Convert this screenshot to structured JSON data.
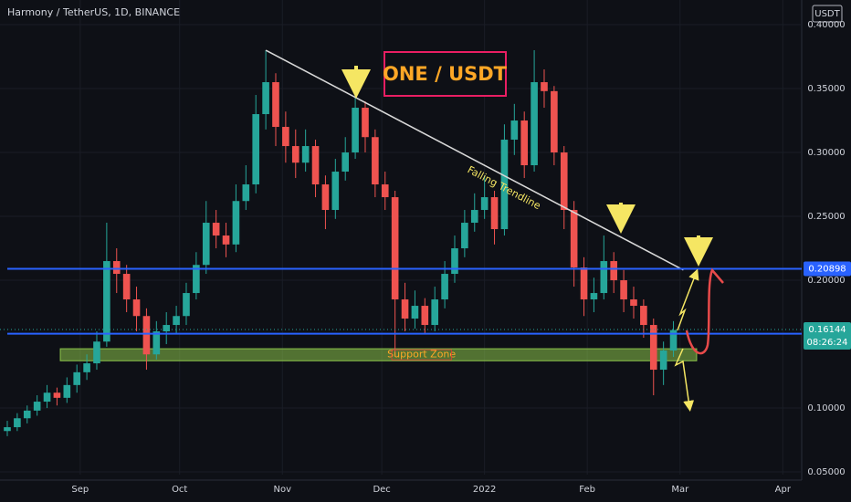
{
  "chart_data": {
    "type": "candlestick",
    "title": "Harmony / TetherUS, 1D, BINANCE",
    "currency": "USDT",
    "heading": "ONE / USDT",
    "up_color": "#26a69a",
    "down_color": "#ef5350",
    "xlim": [
      -24.2,
      217.7
    ],
    "xticks": [
      {
        "value": 0,
        "label": "Sep"
      },
      {
        "value": 30,
        "label": "Oct"
      },
      {
        "value": 61,
        "label": "Nov"
      },
      {
        "value": 91,
        "label": "Dec"
      },
      {
        "value": 122,
        "label": "2022"
      },
      {
        "value": 153,
        "label": "Feb"
      },
      {
        "value": 181,
        "label": "Mar"
      },
      {
        "value": 212,
        "label": "Apr"
      }
    ],
    "ylim": [
      0.0479,
      0.4193
    ],
    "yticks": [
      {
        "value": 0.05,
        "label": "0.05000"
      },
      {
        "value": 0.1,
        "label": "0.10000"
      },
      {
        "value": 0.2,
        "label": "0.20000"
      },
      {
        "value": 0.25,
        "label": "0.25000"
      },
      {
        "value": 0.3,
        "label": "0.30000"
      },
      {
        "value": 0.35,
        "label": "0.35000"
      },
      {
        "value": 0.4,
        "label": "0.40000"
      }
    ],
    "x": [
      -22,
      -19,
      -16,
      -13,
      -10,
      -7,
      -4,
      -1,
      2,
      5,
      8,
      11,
      14,
      17,
      20,
      23,
      26,
      29,
      32,
      35,
      38,
      41,
      44,
      47,
      50,
      53,
      56,
      59,
      62,
      65,
      68,
      71,
      74,
      77,
      80,
      83,
      86,
      89,
      92,
      95,
      98,
      101,
      104,
      107,
      110,
      113,
      116,
      119,
      122,
      125,
      128,
      131,
      134,
      137,
      140,
      143,
      146,
      149,
      152,
      155,
      158,
      161,
      164,
      167,
      170,
      173,
      176,
      179
    ],
    "open": [
      0.082,
      0.085,
      0.092,
      0.098,
      0.105,
      0.112,
      0.108,
      0.118,
      0.128,
      0.135,
      0.152,
      0.215,
      0.205,
      0.185,
      0.172,
      0.142,
      0.16,
      0.165,
      0.172,
      0.19,
      0.212,
      0.245,
      0.235,
      0.228,
      0.262,
      0.275,
      0.33,
      0.355,
      0.32,
      0.305,
      0.292,
      0.305,
      0.275,
      0.255,
      0.285,
      0.3,
      0.335,
      0.312,
      0.275,
      0.265,
      0.185,
      0.17,
      0.18,
      0.165,
      0.185,
      0.205,
      0.225,
      0.245,
      0.255,
      0.265,
      0.24,
      0.31,
      0.325,
      0.29,
      0.355,
      0.348,
      0.3,
      0.255,
      0.21,
      0.185,
      0.19,
      0.215,
      0.2,
      0.185,
      0.18,
      0.165,
      0.13,
      0.145
    ],
    "high": [
      0.09,
      0.096,
      0.102,
      0.11,
      0.118,
      0.116,
      0.124,
      0.134,
      0.142,
      0.16,
      0.245,
      0.225,
      0.212,
      0.195,
      0.178,
      0.168,
      0.175,
      0.18,
      0.198,
      0.222,
      0.262,
      0.255,
      0.245,
      0.275,
      0.29,
      0.345,
      0.38,
      0.362,
      0.332,
      0.318,
      0.318,
      0.31,
      0.282,
      0.295,
      0.312,
      0.345,
      0.34,
      0.318,
      0.285,
      0.27,
      0.198,
      0.192,
      0.186,
      0.195,
      0.215,
      0.235,
      0.255,
      0.268,
      0.282,
      0.27,
      0.322,
      0.338,
      0.332,
      0.38,
      0.365,
      0.352,
      0.305,
      0.262,
      0.218,
      0.202,
      0.235,
      0.222,
      0.208,
      0.195,
      0.185,
      0.17,
      0.152,
      0.168
    ],
    "low": [
      0.078,
      0.082,
      0.088,
      0.094,
      0.1,
      0.102,
      0.104,
      0.112,
      0.122,
      0.13,
      0.148,
      0.19,
      0.175,
      0.16,
      0.13,
      0.138,
      0.15,
      0.158,
      0.165,
      0.185,
      0.205,
      0.225,
      0.218,
      0.222,
      0.255,
      0.268,
      0.318,
      0.305,
      0.292,
      0.28,
      0.285,
      0.265,
      0.24,
      0.248,
      0.278,
      0.295,
      0.3,
      0.265,
      0.255,
      0.14,
      0.16,
      0.162,
      0.158,
      0.16,
      0.178,
      0.198,
      0.218,
      0.238,
      0.248,
      0.228,
      0.235,
      0.298,
      0.28,
      0.285,
      0.335,
      0.29,
      0.24,
      0.195,
      0.172,
      0.175,
      0.185,
      0.19,
      0.175,
      0.17,
      0.155,
      0.11,
      0.118,
      0.14
    ],
    "close": [
      0.085,
      0.092,
      0.098,
      0.105,
      0.112,
      0.108,
      0.118,
      0.128,
      0.135,
      0.152,
      0.215,
      0.205,
      0.185,
      0.172,
      0.142,
      0.16,
      0.165,
      0.172,
      0.19,
      0.212,
      0.245,
      0.235,
      0.228,
      0.262,
      0.275,
      0.33,
      0.355,
      0.32,
      0.305,
      0.292,
      0.305,
      0.275,
      0.255,
      0.285,
      0.3,
      0.335,
      0.312,
      0.275,
      0.265,
      0.185,
      0.17,
      0.18,
      0.165,
      0.185,
      0.205,
      0.225,
      0.245,
      0.255,
      0.265,
      0.24,
      0.31,
      0.325,
      0.29,
      0.355,
      0.348,
      0.3,
      0.255,
      0.21,
      0.185,
      0.19,
      0.215,
      0.2,
      0.185,
      0.18,
      0.165,
      0.13,
      0.145,
      0.161
    ],
    "trendline": {
      "label": "Falling Trendline",
      "color": "#d8d8d8",
      "x": [
        56,
        182
      ],
      "y": [
        0.38,
        0.208
      ]
    },
    "support_zone": {
      "label": "Support Zone",
      "color": "#8bc34a",
      "x": [
        -6,
        186
      ],
      "y": [
        0.137,
        0.1464
      ]
    },
    "levels": [
      {
        "value": 0.20898,
        "color": "#2962ff"
      },
      {
        "value": 0.15819,
        "color": "#2962ff"
      }
    ],
    "last_price": {
      "value": 0.16144,
      "color": "#26a69a",
      "countdown": "08:26:24"
    }
  }
}
